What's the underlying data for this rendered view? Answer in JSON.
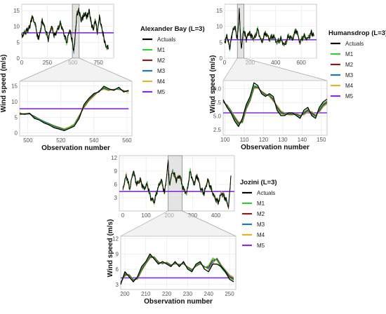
{
  "chart_data": [
    {
      "type": "line",
      "title": "Alexander Bay (L=3)",
      "xlabel": "Observation number",
      "ylabel": "Wind speed (m/s)",
      "grid": true,
      "legend_position": "right",
      "colors": {
        "Actuals": "#000000",
        "M1": "#33cc33",
        "M2": "#8b1a1a",
        "M3": "#1f78b4",
        "M4": "#e6b422",
        "M5": "#8a2be2"
      },
      "overview": {
        "xlim": [
          0,
          900
        ],
        "ylim": [
          0,
          17
        ],
        "xticks": [
          "0",
          "250",
          "500",
          "750"
        ],
        "xtick_values": [
          0,
          250,
          500,
          750
        ],
        "yticks": [
          "0",
          "5",
          "10",
          "15"
        ],
        "ytick_values": [
          0,
          5,
          10,
          15
        ],
        "zoom_window": [
          495,
          562
        ],
        "x": [
          0,
          30,
          60,
          80,
          100,
          130,
          160,
          180,
          200,
          230,
          260,
          290,
          320,
          350,
          380,
          410,
          440,
          470,
          490,
          510,
          525,
          540,
          560,
          580,
          600,
          620,
          640,
          660,
          680,
          700,
          720,
          740,
          760,
          780,
          800,
          820,
          850
        ],
        "values": [
          7,
          8,
          9,
          10,
          13,
          11,
          6,
          8,
          12,
          9,
          6,
          10,
          7,
          9,
          11,
          8,
          5,
          9,
          6,
          2,
          8,
          14,
          15,
          12,
          13,
          14,
          13,
          15,
          11,
          9,
          12,
          8,
          13,
          10,
          7,
          4,
          3
        ],
        "m5_level": 8
      },
      "zoom": {
        "xlim": [
          495,
          563
        ],
        "ylim": [
          -1,
          16.5
        ],
        "xticks": [
          "500",
          "520",
          "540",
          "560"
        ],
        "xtick_values": [
          500,
          520,
          540,
          560
        ],
        "yticks": [
          "0",
          "5",
          "10",
          "15"
        ],
        "ytick_values": [
          0,
          5,
          10,
          15
        ],
        "x": [
          495,
          498,
          501,
          504,
          507,
          510,
          513,
          516,
          519,
          522,
          525,
          528,
          531,
          534,
          537,
          540,
          543,
          546,
          549,
          552,
          555,
          558,
          561
        ],
        "series": [
          {
            "name": "Actuals",
            "values": [
              6,
              6,
              6.3,
              4.6,
              4.1,
              3.1,
              2.5,
              1.6,
              1.2,
              0.7,
              1.4,
              2.1,
              4.6,
              9.1,
              11.1,
              12.6,
              13.1,
              14.9,
              14.1,
              13.6,
              14.6,
              13.1,
              13.6
            ]
          },
          {
            "name": "M1",
            "values": [
              6.2,
              6.1,
              6.1,
              4.9,
              4.3,
              3.3,
              2.7,
              1.9,
              1.4,
              0.9,
              1.6,
              2.4,
              4.9,
              8.7,
              10.9,
              12.4,
              13.2,
              14.6,
              13.9,
              13.7,
              14.3,
              13.3,
              13.4
            ]
          },
          {
            "name": "M2",
            "values": [
              6.4,
              5.9,
              6.2,
              5.1,
              4.2,
              3.4,
              2.8,
              2,
              1.5,
              1,
              1.5,
              2.3,
              5.1,
              8.5,
              10.7,
              12.2,
              13.3,
              14.4,
              13.8,
              13.8,
              14.2,
              13.4,
              13.3
            ]
          },
          {
            "name": "M3",
            "values": [
              6.3,
              6,
              6,
              5.3,
              4.4,
              3.6,
              2.9,
              2.2,
              1.7,
              1.1,
              1.7,
              2.6,
              5.3,
              8.3,
              10.5,
              12,
              13.4,
              14.2,
              13.7,
              13.9,
              14,
              13.5,
              13.2
            ]
          },
          {
            "name": "M4",
            "values": [
              6.1,
              6.2,
              6.1,
              5,
              4.5,
              3.5,
              3,
              2.3,
              1.8,
              1.3,
              1.9,
              2.8,
              5.6,
              8,
              10.2,
              11.7,
              13.5,
              13.9,
              13.5,
              14,
              13.8,
              13.6,
              12.6
            ]
          },
          {
            "name": "M5",
            "values": [
              7.7,
              7.7,
              7.7,
              7.7,
              7.7,
              7.7,
              7.7,
              7.7,
              7.7,
              7.7,
              7.7,
              7.7,
              7.7,
              7.7,
              7.7,
              7.7,
              7.7,
              7.7,
              7.7,
              7.7,
              7.7,
              7.7,
              7.7
            ]
          }
        ]
      }
    },
    {
      "type": "line",
      "title": "Humansdrop  (L=3)",
      "xlabel": "Observation number",
      "ylabel": "Wind speed (m/s)",
      "grid": true,
      "legend_position": "right",
      "colors": {
        "Actuals": "#000000",
        "M1": "#33cc33",
        "M2": "#8b1a1a",
        "M3": "#1f78b4",
        "M4": "#e6b422",
        "M5": "#8a2be2"
      },
      "overview": {
        "xlim": [
          0,
          720
        ],
        "ylim": [
          0,
          17
        ],
        "xticks": [
          "0",
          "200",
          "400",
          "600"
        ],
        "xtick_values": [
          0,
          200,
          400,
          600
        ],
        "yticks": [
          "0",
          "5",
          "10",
          "15"
        ],
        "ytick_values": [
          0,
          5,
          10,
          15
        ],
        "zoom_window": [
          100,
          152
        ],
        "x": [
          0,
          20,
          40,
          60,
          80,
          100,
          115,
          130,
          150,
          170,
          190,
          210,
          230,
          260,
          290,
          320,
          350,
          380,
          410,
          440,
          470,
          500,
          530,
          560,
          590,
          620,
          650,
          680,
          700
        ],
        "values": [
          5,
          7,
          3,
          8,
          10,
          6,
          15,
          3,
          9,
          6,
          8,
          7,
          6,
          9,
          5,
          8,
          6,
          7,
          5,
          6,
          4,
          7,
          6,
          9,
          5,
          7,
          6,
          8,
          7
        ],
        "m5_level": 5.8
      },
      "zoom": {
        "xlim": [
          99,
          153
        ],
        "ylim": [
          1.5,
          11.5
        ],
        "xticks": [
          "100",
          "110",
          "120",
          "130",
          "140",
          "150"
        ],
        "xtick_values": [
          100,
          110,
          120,
          130,
          140,
          150
        ],
        "yticks": [
          "2.5",
          "5.0",
          "7.5",
          "10.0"
        ],
        "ytick_values": [
          2.5,
          5,
          7.5,
          10
        ],
        "x": [
          99,
          101,
          103,
          105,
          107,
          109,
          111,
          113,
          115,
          117,
          119,
          121,
          123,
          125,
          127,
          129,
          131,
          133,
          135,
          137,
          139,
          141,
          143,
          145,
          147,
          149,
          151,
          153
        ],
        "series": [
          {
            "name": "Actuals",
            "values": [
              8,
              6.6,
              5.6,
              4.1,
              3.1,
              4.6,
              7.1,
              8.6,
              11.1,
              10.6,
              9.1,
              8.6,
              9.1,
              8.6,
              6.1,
              5.1,
              5.1,
              5.6,
              5.6,
              5.1,
              4.6,
              6.1,
              6.6,
              5.1,
              4.6,
              6.6,
              7.6,
              8.1
            ]
          },
          {
            "name": "M1",
            "values": [
              7.8,
              6.8,
              5.8,
              4.4,
              3.4,
              4.3,
              6.8,
              8.3,
              10.6,
              10.4,
              9.3,
              8.8,
              8.9,
              8.3,
              6.4,
              5.4,
              5.3,
              5.5,
              5.5,
              5.2,
              4.9,
              5.8,
              6.3,
              5.3,
              4.9,
              6.3,
              7.3,
              7.8
            ]
          },
          {
            "name": "M2",
            "values": [
              7.7,
              6.9,
              5.9,
              4.6,
              3.6,
              4.1,
              6.6,
              8.1,
              10.4,
              10.3,
              9.4,
              8.9,
              8.8,
              8.1,
              6.6,
              5.6,
              5.4,
              5.4,
              5.4,
              5.3,
              5,
              5.6,
              6.1,
              5.5,
              5,
              6.1,
              7.1,
              7.6
            ]
          },
          {
            "name": "M3",
            "values": [
              7.6,
              7,
              6,
              4.8,
              3.8,
              3.9,
              6.4,
              7.9,
              10.2,
              10.2,
              9.5,
              9,
              8.7,
              7.9,
              6.8,
              5.8,
              5.5,
              5.3,
              5.3,
              5.4,
              5.1,
              5.4,
              5.9,
              5.7,
              5.1,
              5.9,
              6.9,
              7.4
            ]
          },
          {
            "name": "M4",
            "values": [
              7.5,
              7.1,
              6.1,
              5,
              4,
              3.7,
              6.2,
              7.7,
              10,
              10.1,
              9.6,
              9.1,
              8.6,
              7.7,
              7,
              6,
              5.6,
              5.2,
              5.2,
              5.5,
              5.2,
              5.2,
              5.7,
              5.9,
              5.2,
              5.7,
              6.7,
              7.2
            ]
          },
          {
            "name": "M5",
            "values": [
              5.6,
              5.6,
              5.6,
              5.6,
              5.6,
              5.6,
              5.6,
              5.6,
              5.6,
              5.6,
              5.6,
              5.6,
              5.6,
              5.6,
              5.6,
              5.6,
              5.6,
              5.6,
              5.6,
              5.6,
              5.6,
              5.6,
              5.6,
              5.6,
              5.6,
              5.6,
              5.6,
              5.6
            ]
          }
        ]
      }
    },
    {
      "type": "line",
      "title": "Jozini  (L=3)",
      "xlabel": "Observation number",
      "ylabel": "Wind speed (m/s)",
      "grid": true,
      "legend_position": "right",
      "colors": {
        "Actuals": "#000000",
        "M1": "#33cc33",
        "M2": "#8b1a1a",
        "M3": "#1f78b4",
        "M4": "#e6b422",
        "M5": "#8a2be2"
      },
      "overview": {
        "xlim": [
          -15,
          480
        ],
        "ylim": [
          0,
          12.5
        ],
        "xticks": [
          "0",
          "100",
          "200",
          "300",
          "400"
        ],
        "xtick_values": [
          0,
          100,
          200,
          300,
          400
        ],
        "yticks": [
          "3",
          "6",
          "9",
          "12"
        ],
        "ytick_values": [
          3,
          6,
          9,
          12
        ],
        "zoom_window": [
          195,
          255
        ],
        "x": [
          0,
          15,
          30,
          45,
          60,
          75,
          90,
          105,
          120,
          135,
          150,
          165,
          180,
          195,
          200,
          215,
          230,
          245,
          260,
          275,
          290,
          305,
          320,
          335,
          350,
          365,
          380,
          395,
          410,
          425,
          440,
          455,
          465
        ],
        "values": [
          5,
          8,
          5,
          9,
          6,
          7,
          5,
          6,
          3,
          2,
          5,
          7,
          4,
          11,
          6,
          9,
          7,
          8,
          5,
          4,
          9,
          6,
          8,
          5,
          4,
          7,
          5,
          3,
          2,
          4,
          3,
          1,
          8
        ],
        "m5_level": 4.4
      },
      "zoom": {
        "xlim": [
          198,
          253
        ],
        "ylim": [
          2,
          12.5
        ],
        "xticks": [
          "200",
          "210",
          "220",
          "230",
          "240",
          "250"
        ],
        "xtick_values": [
          200,
          210,
          220,
          230,
          240,
          250
        ],
        "yticks": [
          "3",
          "6",
          "9",
          "12"
        ],
        "ytick_values": [
          3,
          6,
          9,
          12
        ],
        "x": [
          198,
          200,
          202,
          204,
          206,
          208,
          210,
          212,
          214,
          216,
          218,
          220,
          222,
          224,
          226,
          228,
          230,
          232,
          234,
          236,
          238,
          240,
          242,
          244,
          246,
          248,
          250,
          252
        ],
        "series": [
          {
            "name": "Actuals",
            "values": [
              3,
              5.5,
              4.5,
              3.5,
              4.5,
              6.5,
              7.5,
              9,
              8,
              7,
              7.5,
              7,
              6.5,
              7.5,
              6.5,
              7.5,
              6,
              5.5,
              7,
              7.5,
              6,
              5.5,
              7,
              7,
              6.5,
              5.5,
              4,
              3.5
            ]
          },
          {
            "name": "M1",
            "values": [
              3.2,
              5.2,
              4.7,
              3.7,
              4.3,
              6.2,
              7.3,
              8.7,
              8.2,
              7.2,
              7.3,
              7.1,
              6.6,
              7.3,
              6.7,
              7.3,
              6.2,
              5.7,
              6.8,
              7.3,
              6.3,
              6.7,
              8.2,
              7.7,
              6.3,
              5.3,
              4.3,
              3.8
            ]
          },
          {
            "name": "M2",
            "values": [
              3.3,
              5,
              4.8,
              3.8,
              4.2,
              6,
              7.2,
              8.5,
              8.3,
              7.3,
              7.2,
              7.2,
              6.7,
              7.2,
              6.8,
              7.2,
              6.3,
              5.8,
              6.7,
              7.2,
              6.4,
              6.4,
              7.8,
              7.9,
              6.5,
              5.5,
              4.5,
              4
            ]
          },
          {
            "name": "M3",
            "values": [
              3.4,
              4.8,
              4.9,
              3.9,
              4.1,
              5.8,
              7.1,
              8.3,
              8.4,
              7.4,
              7.1,
              7.3,
              6.8,
              7.1,
              6.9,
              7.1,
              6.4,
              5.9,
              6.6,
              7.1,
              6.5,
              6.1,
              7.4,
              8.1,
              6.7,
              5.7,
              4.7,
              4.2
            ]
          },
          {
            "name": "M4",
            "values": [
              3.5,
              4.6,
              5,
              4,
              4,
              5.6,
              7,
              8.1,
              8.5,
              7.5,
              7,
              7.4,
              6.9,
              7,
              7,
              7,
              6.5,
              6,
              6.5,
              7,
              6.6,
              5.9,
              7,
              8.2,
              6.9,
              5.9,
              4.9,
              4.4
            ]
          },
          {
            "name": "M5",
            "values": [
              4.3,
              4.3,
              4.3,
              4.3,
              4.3,
              4.3,
              4.3,
              4.3,
              4.3,
              4.3,
              4.3,
              4.3,
              4.3,
              4.3,
              4.3,
              4.3,
              4.3,
              4.3,
              4.3,
              4.3,
              4.3,
              4.3,
              4.3,
              4.3,
              4.3,
              4.3,
              4.3,
              4.3
            ]
          }
        ]
      }
    }
  ]
}
